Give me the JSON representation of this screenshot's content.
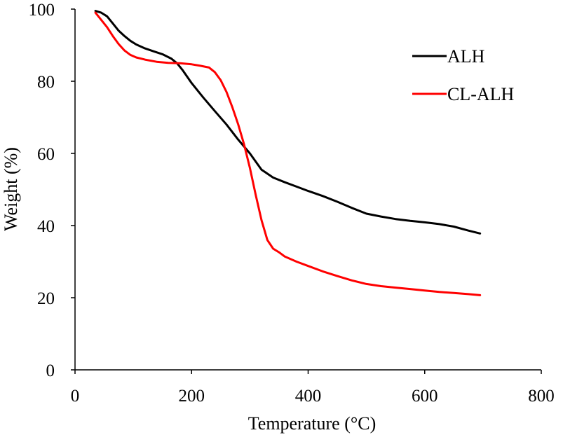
{
  "chart_data": {
    "type": "line",
    "title": "",
    "xlabel": "Temperature (°C)",
    "ylabel": "Weight (%)",
    "xlim": [
      0,
      800
    ],
    "ylim": [
      0,
      100
    ],
    "x_ticks": [
      0,
      200,
      400,
      600,
      800
    ],
    "y_ticks": [
      0,
      20,
      40,
      60,
      80,
      100
    ],
    "x_tick_labels": [
      "0",
      "200",
      "400",
      "600",
      "800"
    ],
    "y_tick_labels": [
      "0",
      "20",
      "40",
      "60",
      "80",
      "100"
    ],
    "grid": false,
    "legend": {
      "position": "top-right"
    },
    "series": [
      {
        "name": "ALH",
        "color": "#000000",
        "x": [
          35,
          45,
          55,
          65,
          75,
          85,
          95,
          105,
          120,
          135,
          150,
          165,
          175,
          185,
          200,
          220,
          240,
          260,
          280,
          300,
          320,
          340,
          360,
          380,
          400,
          425,
          450,
          475,
          500,
          525,
          550,
          575,
          600,
          625,
          650,
          675,
          695
        ],
        "y": [
          99.5,
          99,
          98,
          96,
          94,
          92.5,
          91.2,
          90.2,
          89.1,
          88.3,
          87.5,
          86.3,
          85,
          83,
          79.5,
          75.5,
          71.7,
          68,
          63.8,
          60,
          55.5,
          53.3,
          52,
          50.8,
          49.6,
          48.2,
          46.6,
          44.9,
          43.3,
          42.5,
          41.8,
          41.3,
          40.9,
          40.4,
          39.7,
          38.6,
          37.8
        ]
      },
      {
        "name": "CL-ALH",
        "color": "#ff0000",
        "x": [
          35,
          45,
          55,
          65,
          75,
          85,
          95,
          105,
          120,
          140,
          160,
          180,
          200,
          215,
          230,
          240,
          250,
          260,
          270,
          280,
          290,
          300,
          310,
          320,
          330,
          340,
          350,
          360,
          380,
          400,
          425,
          450,
          475,
          500,
          525,
          550,
          575,
          600,
          625,
          650,
          675,
          695
        ],
        "y": [
          99,
          97,
          95,
          92.5,
          90.3,
          88.5,
          87.3,
          86.6,
          86,
          85.4,
          85.1,
          85,
          84.7,
          84.3,
          83.8,
          82.5,
          80.3,
          77,
          72.8,
          68,
          62.5,
          56,
          48.5,
          41.5,
          36,
          33.6,
          32.6,
          31.4,
          30,
          28.8,
          27.3,
          26,
          24.8,
          23.8,
          23.2,
          22.8,
          22.4,
          22,
          21.6,
          21.3,
          21,
          20.7
        ]
      }
    ]
  }
}
